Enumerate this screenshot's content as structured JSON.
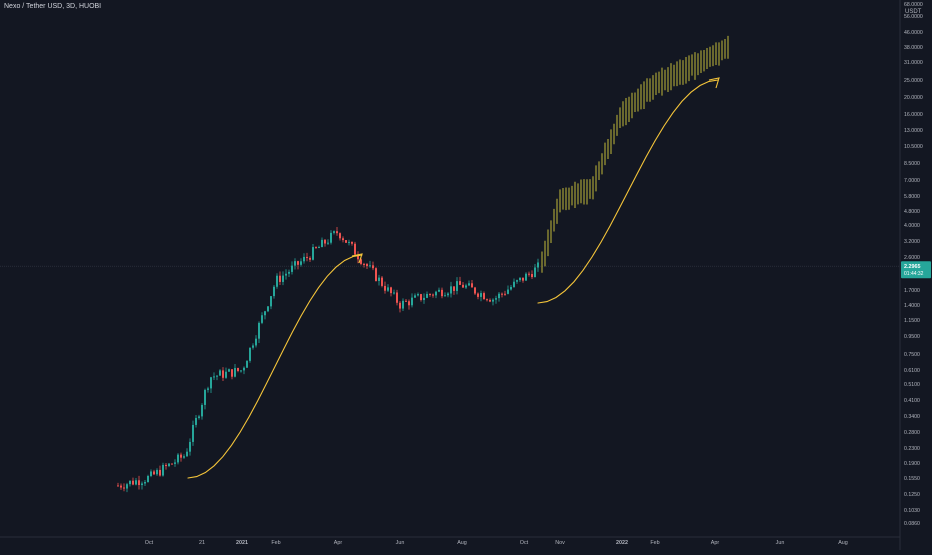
{
  "header": {
    "symbol_title": "Nexo / Tether USD, 3D, HUOBI",
    "currency": "USDT"
  },
  "price_axis": {
    "ticks": [
      "68.0000",
      "56.0000",
      "46.0000",
      "38.0000",
      "31.0000",
      "25.0000",
      "20.0000",
      "16.0000",
      "13.0000",
      "10.5000",
      "8.5000",
      "7.0000",
      "5.8000",
      "4.8000",
      "4.0000",
      "3.2000",
      "2.6000",
      "1.7000",
      "1.4000",
      "1.1500",
      "0.9500",
      "0.7500",
      "0.6100",
      "0.5100",
      "0.4100",
      "0.3400",
      "0.2800",
      "0.2300",
      "0.1900",
      "0.1550",
      "0.1250",
      "0.1030",
      "0.0860"
    ],
    "current_price": "2.2965",
    "countdown": "01:44:32"
  },
  "time_axis": {
    "labels": [
      "Oct",
      "21",
      "2021",
      "Feb",
      "Apr",
      "Jun",
      "Aug",
      "Oct",
      "Nov",
      "2022",
      "Feb",
      "Apr",
      "Jun",
      "Aug"
    ]
  },
  "colors": {
    "background": "#131722",
    "up": "#26a69a",
    "down": "#ef5350",
    "projection": "#c2b83a",
    "arrow": "#f5c53a",
    "axis_text": "#b2b5be",
    "price_badge": "#26a69a"
  },
  "chart_data": {
    "type": "candlestick",
    "title": "Nexo / Tether USD, 3D, HUOBI",
    "y_scale": "log",
    "ylim": [
      0.08,
      68
    ],
    "series": [
      {
        "name": "price",
        "points": [
          {
            "x": "Sep 2020",
            "y": 0.135
          },
          {
            "x": "Oct 2020",
            "y": 0.15
          },
          {
            "x": "Nov 2020",
            "y": 0.2
          },
          {
            "x": "Dec 2020",
            "y": 0.55
          },
          {
            "x": "Jan 2021",
            "y": 0.6
          },
          {
            "x": "Feb 2021",
            "y": 1.9
          },
          {
            "x": "Mar 2021",
            "y": 2.6
          },
          {
            "x": "Apr 2021",
            "y": 3.6
          },
          {
            "x": "May 2021",
            "y": 2.2
          },
          {
            "x": "Jun 2021",
            "y": 1.4
          },
          {
            "x": "Jul 2021",
            "y": 1.6
          },
          {
            "x": "Aug 2021",
            "y": 1.8
          },
          {
            "x": "Sep 2021",
            "y": 1.5
          },
          {
            "x": "Oct 2021",
            "y": 2.3
          }
        ]
      },
      {
        "name": "projection",
        "points": [
          {
            "x": "Oct 2021",
            "y": 2.3
          },
          {
            "x": "Nov 2021",
            "y": 5.5
          },
          {
            "x": "Dec 2021",
            "y": 6.5
          },
          {
            "x": "Jan 2022",
            "y": 17
          },
          {
            "x": "Feb 2022",
            "y": 25
          },
          {
            "x": "Mar 2022",
            "y": 30
          },
          {
            "x": "Apr 2022",
            "y": 40
          }
        ]
      }
    ]
  }
}
